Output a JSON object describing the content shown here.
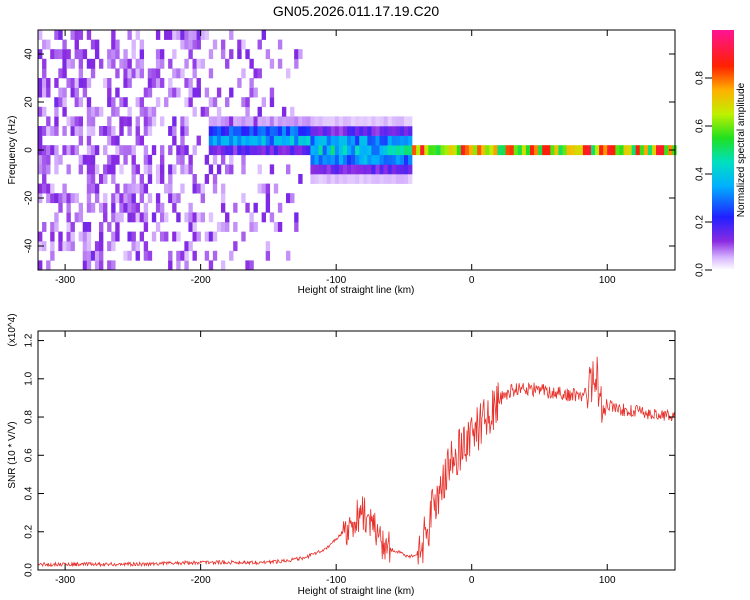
{
  "title": "GN05.2026.011.17.19.C20",
  "colors": {
    "snr_line": "#e8302a",
    "background": "#ffffff",
    "axis": "#000000"
  },
  "chart_data": [
    {
      "type": "heatmap",
      "xlabel": "Height of straight line (km)",
      "ylabel": "Frequency (Hz)",
      "xlim": [
        -320,
        150
      ],
      "ylim": [
        -50,
        50
      ],
      "xticks": [
        "-300",
        "-200",
        "-100",
        "0",
        "100"
      ],
      "yticks": [
        "-40",
        "-20",
        "0",
        "20",
        "40"
      ],
      "colorbar": {
        "label": "Normalized spectral amplitude",
        "range": [
          0,
          1
        ],
        "ticks": [
          "0.0",
          "0.2",
          "0.4",
          "0.6",
          "0.8"
        ],
        "colormap": "rainbow (purple-blue-cyan-green-yellow-red-magenta)"
      },
      "regions": [
        {
          "x_from": -320,
          "x_to": -125,
          "description": "broadband low-amplitude purple noise across all frequencies"
        },
        {
          "x_from": -195,
          "x_to": -120,
          "freq_center": 5,
          "freq_halfwidth": 8,
          "peak_amplitude": 0.45
        },
        {
          "x_from": -120,
          "x_to": -45,
          "freq_center": 0,
          "freq_halfwidth": 12,
          "peak_amplitude": 0.5
        },
        {
          "x_from": -45,
          "x_to": 150,
          "freq_center": 0,
          "freq_halfwidth": 3,
          "peak_amplitude": 0.9
        }
      ]
    },
    {
      "type": "line",
      "xlabel": "Height of straight line (km)",
      "ylabel": "SNR (10 * V/V)",
      "multiplier": "(x10^4)",
      "xlim": [
        -320,
        150
      ],
      "ylim": [
        0,
        1.25
      ],
      "xticks": [
        "-300",
        "-200",
        "-100",
        "0",
        "100"
      ],
      "yticks": [
        "0.0",
        "0.2",
        "0.4",
        "0.6",
        "0.8",
        "1.0",
        "1.2"
      ],
      "series": [
        {
          "x": [
            -320,
            -250,
            -200,
            -150,
            -125,
            -110,
            -100,
            -90,
            -80,
            -75,
            -70,
            -60,
            -50,
            -45,
            -40,
            -35,
            -30,
            -25,
            -20,
            -15,
            -10,
            -5,
            0,
            5,
            10,
            15,
            20,
            25,
            30,
            40,
            50,
            60,
            70,
            80,
            85,
            90,
            92,
            95,
            100,
            110,
            120,
            130,
            140,
            150
          ],
          "y": [
            0.03,
            0.03,
            0.04,
            0.04,
            0.06,
            0.1,
            0.16,
            0.24,
            0.3,
            0.26,
            0.18,
            0.11,
            0.08,
            0.07,
            0.09,
            0.16,
            0.28,
            0.4,
            0.48,
            0.56,
            0.62,
            0.67,
            0.72,
            0.74,
            0.8,
            0.84,
            0.88,
            0.92,
            0.94,
            0.95,
            0.94,
            0.93,
            0.92,
            0.91,
            0.93,
            1.0,
            1.05,
            0.88,
            0.86,
            0.84,
            0.83,
            0.82,
            0.81,
            0.8
          ]
        }
      ]
    }
  ]
}
